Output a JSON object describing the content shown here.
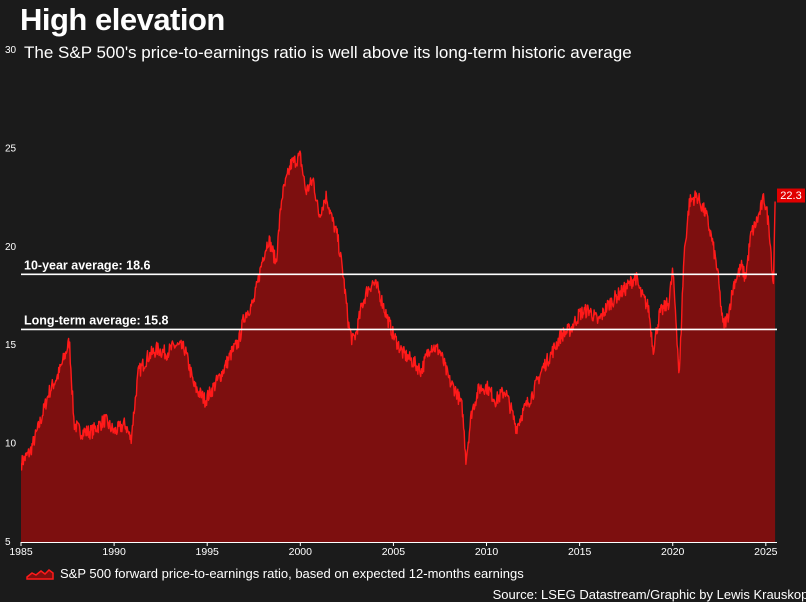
{
  "header": {
    "title": "High elevation",
    "subtitle": "The S&P 500's price-to-earnings ratio is well above its long-term historic average"
  },
  "footer": {
    "legend": "S&P 500 forward price-to-earnings ratio, based on expected 12-months earnings",
    "source": "Source: LSEG Datastream/Graphic by Lewis Krauskopf"
  },
  "colors": {
    "background": "#1b1b1b",
    "line": "#ff1a1a",
    "fill": "#7d0f0f",
    "reference_lines": "#ffffff",
    "label_box": "#e00000"
  },
  "chart_data": {
    "type": "area",
    "title": "High elevation",
    "xlabel": "",
    "ylabel": "",
    "xlim": [
      1985,
      2025.6
    ],
    "ylim": [
      5,
      30
    ],
    "y_ticks": [
      5,
      10,
      15,
      20,
      25,
      30
    ],
    "x_ticks": [
      1985,
      1990,
      1995,
      2000,
      2005,
      2010,
      2015,
      2020,
      2025
    ],
    "series": [
      {
        "name": "S&P 500 forward price-to-earnings ratio, based on expected 12-months earnings",
        "x": [
          1985.0,
          1985.5,
          1986.0,
          1986.5,
          1987.0,
          1987.4,
          1987.6,
          1987.85,
          1988.2,
          1988.8,
          1989.5,
          1990.0,
          1990.6,
          1990.9,
          1991.3,
          1991.8,
          1992.3,
          1992.8,
          1993.3,
          1993.8,
          1994.3,
          1994.9,
          1995.3,
          1995.8,
          1996.3,
          1996.7,
          1997.0,
          1997.5,
          1998.0,
          1998.3,
          1998.7,
          1999.0,
          1999.5,
          2000.0,
          2000.3,
          2000.7,
          2001.0,
          2001.4,
          2001.7,
          2002.0,
          2002.3,
          2002.6,
          2002.8,
          2003.0,
          2003.3,
          2003.6,
          2003.9,
          2004.2,
          2004.6,
          2005.0,
          2005.5,
          2006.0,
          2006.5,
          2007.0,
          2007.5,
          2008.0,
          2008.4,
          2008.7,
          2008.9,
          2009.2,
          2009.6,
          2010.0,
          2010.5,
          2011.0,
          2011.3,
          2011.6,
          2011.9,
          2012.5,
          2013.0,
          2013.5,
          2014.0,
          2014.5,
          2015.0,
          2015.5,
          2016.0,
          2016.5,
          2017.0,
          2017.5,
          2018.0,
          2018.3,
          2018.7,
          2018.95,
          2019.3,
          2019.8,
          2020.0,
          2020.2,
          2020.35,
          2020.6,
          2020.9,
          2021.3,
          2021.8,
          2022.1,
          2022.4,
          2022.7,
          2022.95,
          2023.3,
          2023.7,
          2023.9,
          2024.2,
          2024.6,
          2024.9,
          2025.05,
          2025.2,
          2025.4,
          2025.5
        ],
        "values": [
          9.0,
          9.6,
          11.0,
          12.6,
          13.5,
          14.6,
          15.2,
          11.0,
          10.6,
          10.6,
          11.2,
          10.6,
          11.0,
          10.2,
          13.6,
          14.4,
          14.8,
          14.6,
          15.0,
          14.8,
          12.9,
          12.2,
          12.8,
          13.6,
          14.6,
          15.2,
          16.5,
          17.2,
          19.5,
          20.4,
          19.2,
          22.5,
          24.2,
          24.6,
          22.8,
          23.4,
          21.6,
          22.6,
          21.4,
          20.5,
          18.6,
          16.0,
          15.2,
          15.6,
          17.0,
          17.8,
          18.2,
          17.8,
          16.6,
          15.5,
          14.6,
          14.2,
          13.7,
          15.0,
          14.7,
          13.2,
          12.6,
          11.8,
          9.2,
          11.6,
          12.8,
          12.9,
          12.2,
          12.7,
          11.8,
          10.8,
          11.5,
          12.6,
          13.8,
          14.6,
          15.5,
          15.8,
          16.6,
          16.8,
          16.2,
          17.0,
          17.5,
          17.9,
          18.5,
          17.6,
          16.9,
          14.8,
          16.6,
          17.2,
          18.8,
          16.0,
          13.3,
          19.5,
          22.3,
          22.6,
          21.6,
          20.4,
          18.8,
          16.0,
          16.4,
          18.2,
          19.0,
          18.4,
          20.6,
          21.5,
          22.5,
          21.8,
          20.8,
          18.0,
          22.3
        ]
      }
    ],
    "reference_lines": [
      {
        "label": "10-year average: 18.6",
        "value": 18.6
      },
      {
        "label": "Long-term average: 15.8",
        "value": 15.8
      }
    ],
    "last_value_label": "22.3"
  }
}
